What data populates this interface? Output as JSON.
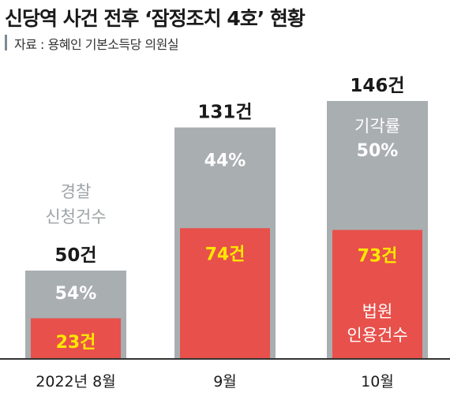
{
  "title": "신당역 사건 전후 ‘잠정조치 4호’ 현황",
  "source": "자료 : 용혜인 기본소득당 의원실",
  "colors": {
    "applied_bar": "#a9aeb1",
    "accepted_bar": "#e8504b",
    "accepted_text": "#ffe800",
    "rate_text": "#ffffff",
    "axis": "#333333"
  },
  "chart_data": {
    "type": "bar",
    "categories": [
      "2022년 8월",
      "9월",
      "10월"
    ],
    "series": [
      {
        "name": "경찰 신청건수",
        "values": [
          50,
          131,
          146
        ]
      },
      {
        "name": "법원 인용건수",
        "values": [
          23,
          74,
          73
        ]
      },
      {
        "name": "기각률",
        "values": [
          54,
          44,
          50
        ]
      }
    ],
    "total_labels": [
      "50건",
      "131건",
      "146건"
    ],
    "accepted_labels": [
      "23건",
      "74건",
      "73건"
    ],
    "rate_labels": [
      "54%",
      "44%",
      "50%"
    ],
    "annotations": {
      "police_label": [
        "경찰",
        "신청건수"
      ],
      "reject_label": "기각률",
      "court_label": [
        "법원",
        "인용건수"
      ]
    },
    "ylim": [
      0,
      146
    ]
  }
}
